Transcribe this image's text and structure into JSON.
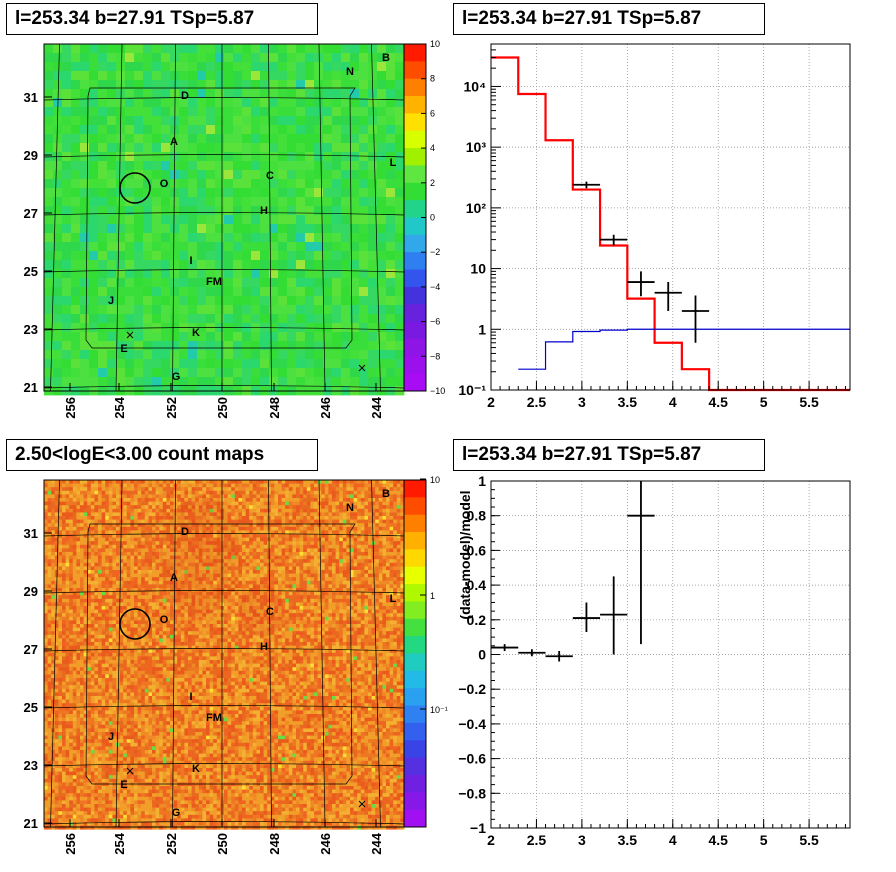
{
  "panels": {
    "map_tl": {
      "title": "l=253.34 b=27.91 TSp=5.87"
    },
    "spectrum": {
      "title": "l=253.34 b=27.91 TSp=5.87"
    },
    "map_bl": {
      "title": "2.50<logE<3.00 count maps"
    },
    "residual": {
      "title": "l=253.34 b=27.91 TSp=5.87"
    }
  },
  "map_axes": {
    "x_ticks": [
      "256",
      "254",
      "252",
      "250",
      "248",
      "246",
      "244"
    ],
    "y_ticks": [
      "31",
      "29",
      "27",
      "25",
      "23",
      "21"
    ]
  },
  "map_labels": [
    "B",
    "N",
    "D",
    "A",
    "L",
    "C",
    "O",
    "H",
    "I",
    "FM",
    "J",
    "K",
    "E",
    "G"
  ],
  "colors": {
    "data": "#000000",
    "model": "#ff0000",
    "background_model": "#0000cc",
    "grid": "#999999",
    "map1_bg": "#33dd33",
    "map2_bg": "#ee7722"
  },
  "colorbar_tl": {
    "ticks": [
      "10",
      "8",
      "6",
      "4",
      "2",
      "0",
      "−2",
      "−4",
      "−6",
      "−8",
      "−10"
    ]
  },
  "colorbar_bl": {
    "ticks": [
      "10",
      "1",
      "10⁻¹"
    ]
  },
  "chart_data": [
    {
      "type": "line",
      "title": "l=253.34 b=27.91 TSp=5.87",
      "xlabel": "",
      "ylabel": "",
      "log_y": true,
      "xlim": [
        2,
        5.95
      ],
      "ylim": [
        0.1,
        50000
      ],
      "grid": true,
      "x_ticks": [
        "2",
        "2.5",
        "3",
        "3.5",
        "4",
        "4.5",
        "5",
        "5.5"
      ],
      "y_ticks": [
        "10⁻¹",
        "1",
        "10",
        "10²",
        "10³",
        "10⁴"
      ],
      "series": [
        {
          "kind": "step",
          "color": "red",
          "edges": [
            2,
            2.3,
            2.6,
            2.9,
            3.2,
            3.5,
            3.8,
            4.1,
            4.4,
            5.95
          ],
          "values": [
            30000,
            7500,
            1300,
            200,
            24,
            3.2,
            0.6,
            0.22,
            0.1
          ]
        },
        {
          "kind": "step",
          "color": "blue",
          "edges": [
            2.3,
            2.6,
            2.9,
            3.2,
            3.5,
            5.95
          ],
          "values": [
            0.22,
            0.62,
            0.92,
            0.97,
            1.0
          ]
        },
        {
          "kind": "errorbar",
          "color": "black",
          "points": [
            {
              "x": 3.05,
              "y": 240,
              "ylo": 210,
              "yhi": 270,
              "xerr": 0.15
            },
            {
              "x": 3.35,
              "y": 30,
              "ylo": 24,
              "yhi": 36,
              "xerr": 0.15
            },
            {
              "x": 3.65,
              "y": 6,
              "ylo": 3.5,
              "yhi": 9,
              "xerr": 0.15
            },
            {
              "x": 3.95,
              "y": 4,
              "ylo": 2,
              "yhi": 6,
              "xerr": 0.15
            },
            {
              "x": 4.25,
              "y": 2,
              "ylo": 0.6,
              "yhi": 3.6,
              "xerr": 0.15
            }
          ]
        }
      ]
    },
    {
      "type": "scatter",
      "title": "l=253.34 b=27.91 TSp=5.87",
      "xlabel": "",
      "ylabel": "(data-model)/model",
      "xlim": [
        2,
        5.95
      ],
      "ylim": [
        -1,
        1
      ],
      "grid": true,
      "x_ticks": [
        "2",
        "2.5",
        "3",
        "3.5",
        "4",
        "4.5",
        "5",
        "5.5"
      ],
      "y_ticks": [
        "−1",
        "−0.8",
        "−0.6",
        "−0.4",
        "−0.2",
        "0",
        "0.2",
        "0.4",
        "0.6",
        "0.8",
        "1"
      ],
      "points": [
        {
          "x": 2.15,
          "y": 0.04,
          "ylo": 0.02,
          "yhi": 0.06,
          "xerr": 0.15
        },
        {
          "x": 2.45,
          "y": 0.01,
          "ylo": -0.01,
          "yhi": 0.03,
          "xerr": 0.15
        },
        {
          "x": 2.75,
          "y": -0.01,
          "ylo": -0.04,
          "yhi": 0.02,
          "xerr": 0.15
        },
        {
          "x": 3.05,
          "y": 0.21,
          "ylo": 0.13,
          "yhi": 0.3,
          "xerr": 0.15
        },
        {
          "x": 3.35,
          "y": 0.23,
          "ylo": 0.0,
          "yhi": 0.45,
          "xerr": 0.15
        },
        {
          "x": 3.65,
          "y": 0.8,
          "ylo": 0.06,
          "yhi": 1.0,
          "xerr": 0.15
        }
      ]
    }
  ]
}
